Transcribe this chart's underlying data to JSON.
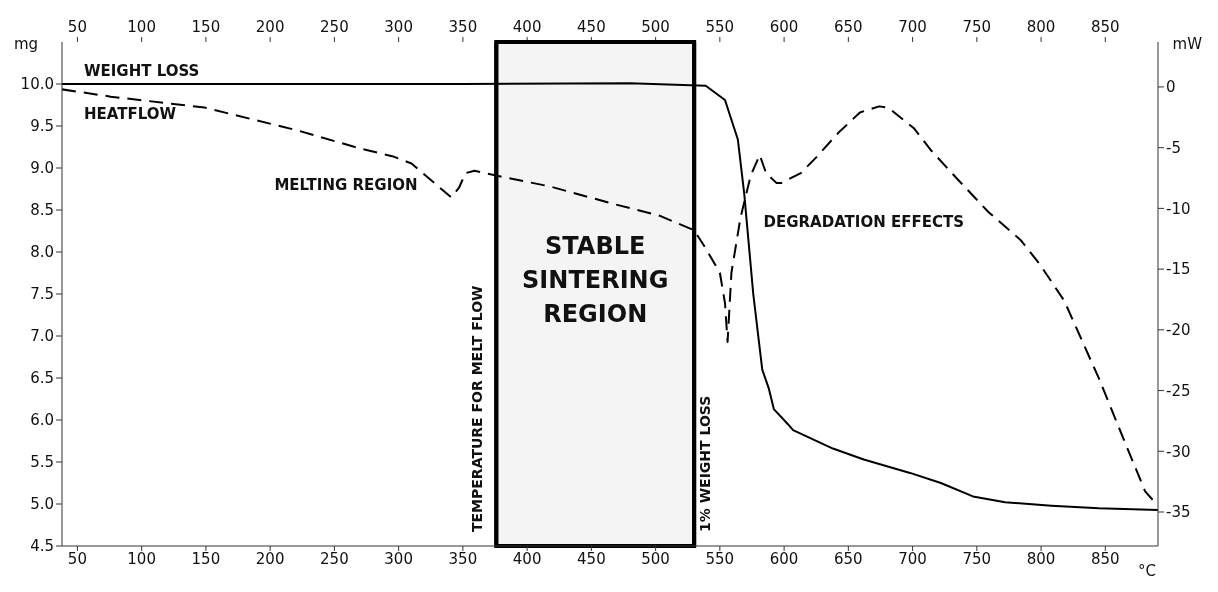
{
  "chart_data": {
    "type": "line",
    "xlabel": "°C",
    "ylabel": "mg",
    "y2label": "mW",
    "xlim": [
      38,
      891
    ],
    "xticks": [
      50,
      100,
      150,
      200,
      250,
      300,
      350,
      400,
      450,
      500,
      550,
      600,
      650,
      700,
      750,
      800,
      850
    ],
    "x2lim": [
      38,
      891
    ],
    "x2ticks": [
      50,
      100,
      150,
      200,
      250,
      300,
      350,
      400,
      450,
      500,
      550,
      600,
      650,
      700,
      750,
      800,
      850
    ],
    "ylim": [
      4.5,
      10.5
    ],
    "yticks": [
      4.5,
      {
        "value": 5,
        "label": "5.0"
      },
      5.5,
      {
        "value": 6,
        "label": "6.0"
      },
      6.5,
      {
        "value": 7,
        "label": "7.0"
      },
      7.5,
      {
        "value": 8,
        "label": "8.0"
      },
      8.5,
      {
        "value": 9,
        "label": "9.0"
      },
      9.5,
      {
        "value": 10,
        "label": "10.0"
      }
    ],
    "y2lim": [
      -37.8,
      3.7
    ],
    "y2ticks": [
      -35,
      -30,
      -25,
      -20,
      -15,
      -10,
      -5,
      0
    ],
    "marker": "none",
    "series": [
      {
        "name": "WEIGHT LOSS",
        "color": "#000000",
        "line_style": "solid",
        "x": [
          38,
          200,
          350,
          480,
          539,
          554,
          564,
          569,
          576,
          583,
          588,
          592,
          603,
          607,
          638,
          662,
          698,
          722,
          747,
          772,
          808,
          845,
          891
        ],
        "values": [
          10.0,
          10.0,
          10.0,
          10.01,
          9.98,
          9.81,
          9.34,
          8.69,
          7.5,
          6.6,
          6.38,
          6.13,
          5.95,
          5.88,
          5.66,
          5.53,
          5.37,
          5.25,
          5.09,
          5.02,
          4.98,
          4.95,
          4.93
        ]
      },
      {
        "name": "HEATFLOW",
        "color": "#000000",
        "axis": "y2",
        "line_style": "dashed",
        "x": [
          38,
          76,
          149,
          222,
          271,
          295,
          310,
          332,
          341,
          347,
          352,
          359,
          376,
          418,
          466,
          503,
          530,
          539,
          550,
          554,
          556,
          559,
          566,
          574,
          581,
          586,
          594,
          598,
          613,
          625,
          642,
          659,
          674,
          681,
          701,
          715,
          735,
          759,
          784,
          799,
          818,
          845,
          865,
          881,
          891
        ],
        "values": [
          -0.2,
          -0.8,
          -1.7,
          -3.6,
          -5.1,
          -5.7,
          -6.3,
          -8.3,
          -9.1,
          -8.3,
          -7.1,
          -6.9,
          -7.3,
          -8.2,
          -9.6,
          -10.6,
          -11.8,
          -13.3,
          -15.3,
          -17.8,
          -21,
          -15.3,
          -10.8,
          -7.3,
          -5.6,
          -7.1,
          -7.9,
          -7.9,
          -7.1,
          -5.8,
          -3.8,
          -2.1,
          -1.6,
          -1.7,
          -3.4,
          -5.3,
          -7.6,
          -10.3,
          -12.6,
          -14.6,
          -17.6,
          -24,
          -29.2,
          -33.3,
          -34.5
        ]
      }
    ],
    "bands": [
      {
        "axis": "x",
        "from": 376,
        "to": 530,
        "label": "STABLE SINTERING REGION",
        "color": "#f4f4f4"
      }
    ],
    "ref_lines": [
      {
        "axis": "x",
        "value": 376,
        "label": "TEMPERATURE FOR MELT FLOW"
      },
      {
        "axis": "x",
        "value": 530,
        "label": "1% WEIGHT LOSS"
      }
    ],
    "annotations": [
      "MELTING REGION",
      "DEGRADATION EFFECTS"
    ]
  }
}
